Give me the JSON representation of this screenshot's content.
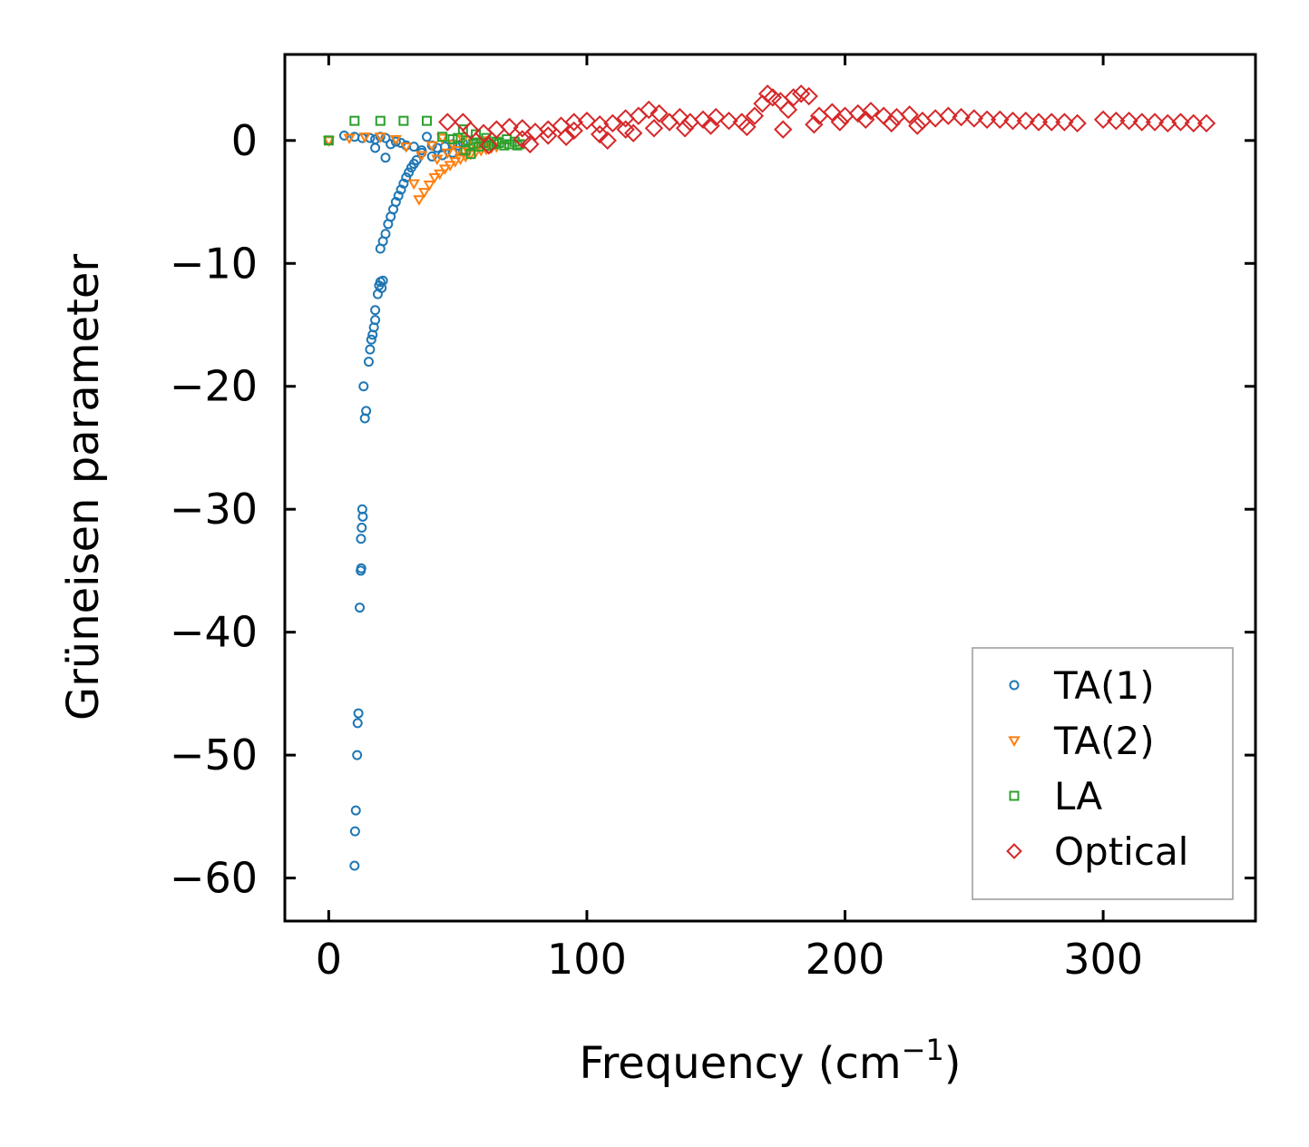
{
  "chart_data": {
    "type": "scatter",
    "title": "",
    "xlabel_main": "Frequency (cm",
    "xlabel_sup": "−1",
    "xlabel_end": ")",
    "ylabel": "Grüneisen parameter",
    "xlim": [
      -17,
      359
    ],
    "ylim": [
      -63.5,
      7
    ],
    "xticks": [
      0,
      100,
      200,
      300
    ],
    "xtick_labels": [
      "0",
      "100",
      "200",
      "300"
    ],
    "yticks": [
      0,
      -10,
      -20,
      -30,
      -40,
      -50,
      -60
    ],
    "ytick_labels": [
      "0",
      "−10",
      "−20",
      "−30",
      "−40",
      "−50",
      "−60"
    ],
    "legend_position": "lower-right",
    "series": [
      {
        "name": "TA(1)",
        "color": "#1f77b4",
        "marker": "circle",
        "x": [
          0,
          6,
          10,
          13,
          16,
          18,
          20,
          22,
          24,
          26,
          28,
          30,
          33,
          36,
          38,
          40,
          42,
          45,
          48,
          50,
          52,
          20,
          21,
          22,
          23,
          24,
          25,
          26,
          27,
          28,
          29,
          30,
          31,
          32,
          33,
          34,
          18,
          19,
          19.5,
          20,
          20.5,
          21,
          17,
          17.5,
          18,
          16,
          16.5,
          15.5,
          14,
          14.5,
          13.5,
          13,
          13.2,
          12.8,
          12.5,
          12.6,
          12.4,
          12,
          11.5,
          11.2,
          11,
          10.5,
          10.2,
          10,
          36,
          40,
          44,
          48,
          52,
          18,
          22
        ],
        "y": [
          0,
          0.4,
          0.3,
          0.2,
          0.2,
          0.1,
          0.3,
          0.2,
          -0.3,
          -0.1,
          -0.2,
          -0.4,
          -0.5,
          -0.8,
          0.3,
          -0.4,
          -0.6,
          -0.5,
          -0.3,
          -0.4,
          -0.2,
          -8.8,
          -8.2,
          -7.6,
          -6.8,
          -6.2,
          -5.6,
          -5.0,
          -4.5,
          -4.0,
          -3.5,
          -3.0,
          -2.6,
          -2.2,
          -1.9,
          -1.6,
          -13.8,
          -12.5,
          -11.8,
          -11.5,
          -12.0,
          -11.4,
          -15.8,
          -15.2,
          -14.6,
          -17.0,
          -16.2,
          -18.0,
          -22.6,
          -22.0,
          -20.0,
          -30.0,
          -30.6,
          -31.5,
          -32.4,
          -34.8,
          -35.0,
          -38.0,
          -46.6,
          -47.4,
          -50.0,
          -54.5,
          -56.2,
          -59.0,
          -1.0,
          -1.3,
          -1.2,
          -1.0,
          -0.9,
          -0.6,
          -1.4
        ]
      },
      {
        "name": "TA(2)",
        "color": "#ff7f0e",
        "marker": "triangle-down",
        "x": [
          0,
          8,
          14,
          20,
          26,
          30,
          33,
          35,
          37,
          39,
          41,
          43,
          45,
          47,
          49,
          51,
          53,
          55,
          57,
          59,
          61,
          63,
          65,
          40,
          44,
          48,
          52,
          56,
          60,
          36,
          42,
          46,
          50,
          54,
          58,
          62
        ],
        "y": [
          0,
          0.2,
          0.3,
          0.3,
          0.1,
          -0.5,
          -3.5,
          -4.8,
          -4.2,
          -3.6,
          -3.0,
          -2.7,
          -2.3,
          -2.0,
          -1.7,
          -1.5,
          -1.3,
          -1.1,
          -0.9,
          -0.8,
          -0.7,
          -0.6,
          -0.5,
          -0.4,
          0.2,
          -0.3,
          0.1,
          -0.2,
          0.0,
          -1.2,
          -1.5,
          -1.0,
          -0.8,
          -0.9,
          -0.5,
          -0.3
        ]
      },
      {
        "name": "LA",
        "color": "#2ca02c",
        "marker": "square",
        "x": [
          0,
          10,
          20,
          29,
          38,
          52,
          44,
          48,
          50,
          54,
          56,
          58,
          60,
          62,
          64,
          66,
          68,
          70,
          72,
          74,
          57,
          61,
          65,
          69,
          73,
          53,
          55
        ],
        "y": [
          0,
          1.6,
          1.6,
          1.6,
          1.6,
          0.9,
          0.3,
          0.1,
          0.2,
          0.0,
          -0.3,
          -0.5,
          -0.2,
          -0.4,
          -0.3,
          -0.2,
          -0.4,
          -0.3,
          -0.1,
          -0.3,
          0.5,
          0.2,
          -0.1,
          0.1,
          -0.4,
          -0.8,
          -1.1
        ]
      },
      {
        "name": "Optical",
        "color": "#d62728",
        "marker": "diamond",
        "x": [
          46,
          52,
          55,
          60,
          65,
          70,
          75,
          80,
          85,
          90,
          95,
          100,
          105,
          110,
          115,
          120,
          124,
          128,
          132,
          136,
          140,
          145,
          150,
          155,
          160,
          165,
          168,
          170,
          172,
          175,
          178,
          180,
          183,
          186,
          190,
          195,
          200,
          205,
          210,
          215,
          220,
          225,
          230,
          235,
          240,
          245,
          250,
          255,
          260,
          265,
          270,
          275,
          280,
          285,
          290,
          300,
          305,
          310,
          315,
          320,
          325,
          330,
          335,
          340,
          62,
          78,
          92,
          108,
          118,
          126,
          138,
          148,
          162,
          176,
          188,
          198,
          208,
          218,
          228,
          75,
          85,
          95,
          105,
          115
        ],
        "y": [
          1.5,
          1.5,
          0.8,
          0.6,
          0.9,
          1.1,
          1.0,
          0.7,
          0.9,
          1.2,
          1.5,
          1.6,
          1.3,
          1.4,
          1.8,
          2.0,
          2.5,
          2.2,
          1.5,
          1.9,
          1.5,
          1.7,
          1.9,
          1.6,
          1.5,
          2.0,
          3.0,
          3.8,
          3.5,
          3.2,
          2.5,
          3.5,
          3.8,
          3.6,
          2.0,
          2.3,
          2.0,
          2.2,
          2.4,
          2.0,
          1.9,
          2.1,
          1.6,
          1.8,
          2.0,
          1.9,
          1.8,
          1.7,
          1.7,
          1.6,
          1.6,
          1.5,
          1.5,
          1.5,
          1.4,
          1.7,
          1.6,
          1.6,
          1.5,
          1.5,
          1.4,
          1.5,
          1.4,
          1.4,
          -0.4,
          -0.3,
          0.3,
          0.0,
          0.6,
          1.0,
          1.0,
          1.2,
          1.1,
          0.9,
          1.3,
          1.5,
          1.7,
          1.4,
          1.2,
          0.1,
          0.4,
          0.8,
          0.5,
          0.9
        ]
      }
    ]
  }
}
